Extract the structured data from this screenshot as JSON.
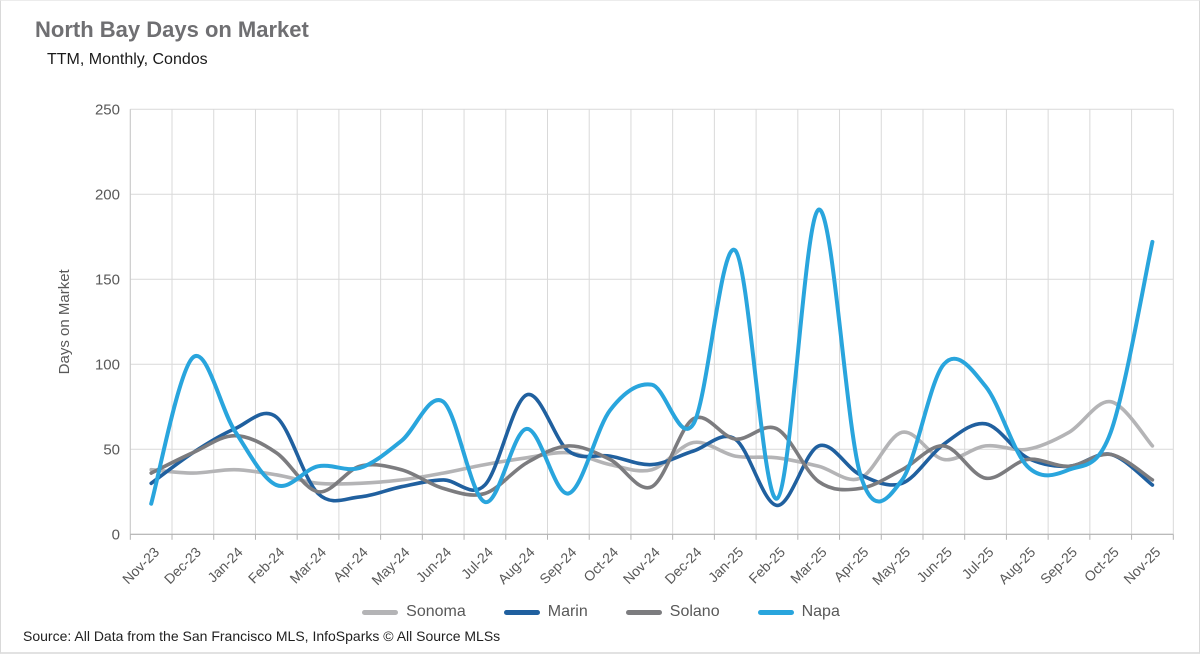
{
  "header": {
    "title": "North Bay Days on Market",
    "subtitle": "TTM, Monthly, Condos"
  },
  "source_note": "Source: All Data from the San Francisco MLS, InfoSparks © All Source MLSs",
  "ui_colors": {
    "title": "#6f6f72",
    "axis_text": "#595959",
    "gridline": "#d9d9d9",
    "axis_line": "#b3b3b3",
    "left_axis_line": "#c9c9c9"
  },
  "chart_data": {
    "type": "line",
    "title": "North Bay Days on Market",
    "subtitle": "TTM, Monthly, Condos",
    "xlabel": "",
    "ylabel": "Days on Market",
    "ylim": [
      0,
      250
    ],
    "y_ticks": [
      0,
      50,
      100,
      150,
      200,
      250
    ],
    "grid": true,
    "smooth": true,
    "legend_position": "bottom",
    "x_categories": [
      "Nov-23",
      "Dec-23",
      "Jan-24",
      "Feb-24",
      "Mar-24",
      "Apr-24",
      "May-24",
      "Jun-24",
      "Jul-24",
      "Aug-24",
      "Sep-24",
      "Oct-24",
      "Nov-24",
      "Dec-24",
      "Jan-25",
      "Feb-25",
      "Mar-25",
      "Apr-25",
      "May-25",
      "Jun-25",
      "Jul-25",
      "Aug-25",
      "Sep-25",
      "Oct-25",
      "Nov-25"
    ],
    "series": [
      {
        "name": "Sonoma",
        "color": "#b4b4b6",
        "values": [
          38,
          36,
          38,
          35,
          30,
          30,
          32,
          36,
          41,
          45,
          48,
          41,
          38,
          54,
          46,
          45,
          40,
          33,
          60,
          44,
          52,
          50,
          60,
          78,
          52
        ]
      },
      {
        "name": "Marin",
        "color": "#20609f",
        "values": [
          30,
          48,
          62,
          69,
          24,
          22,
          28,
          32,
          29,
          82,
          49,
          46,
          41,
          49,
          56,
          17,
          52,
          35,
          30,
          53,
          65,
          45,
          40,
          47,
          29
        ]
      },
      {
        "name": "Solano",
        "color": "#7c7c7f",
        "values": [
          36,
          48,
          58,
          48,
          25,
          40,
          38,
          27,
          24,
          42,
          52,
          44,
          28,
          68,
          56,
          62,
          31,
          27,
          38,
          52,
          33,
          44,
          40,
          47,
          32
        ]
      },
      {
        "name": "Napa",
        "color": "#29a5dd",
        "values": [
          18,
          104,
          61,
          29,
          40,
          39,
          55,
          78,
          19,
          62,
          24,
          73,
          88,
          65,
          167,
          21,
          191,
          35,
          32,
          100,
          87,
          40,
          38,
          60,
          172
        ]
      }
    ]
  }
}
